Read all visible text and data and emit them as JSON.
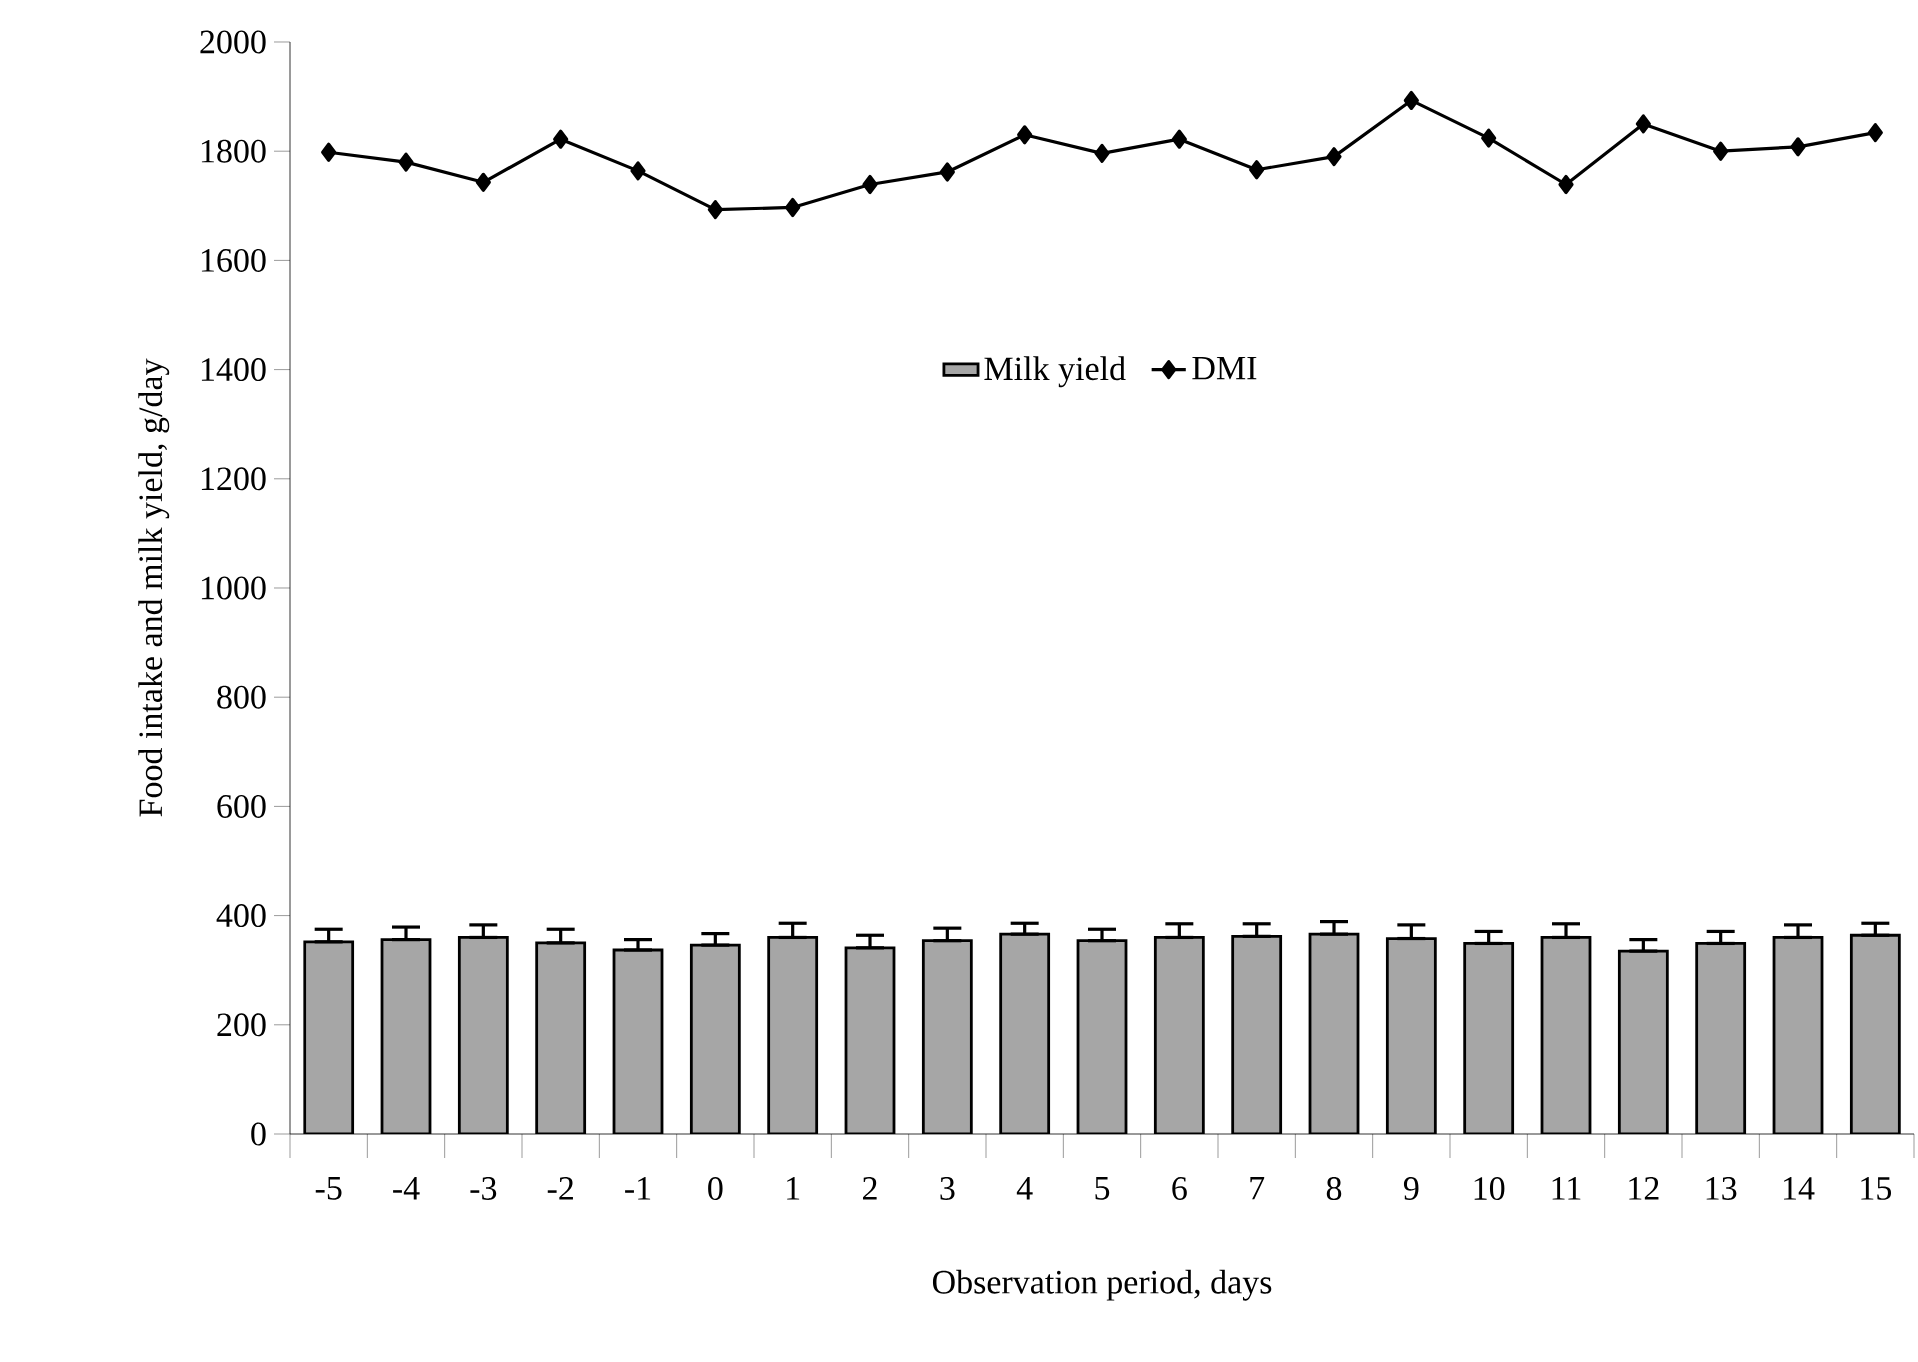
{
  "chart_data": {
    "type": "bar",
    "xlabel": "Observation period, days",
    "ylabel": "Food intake and milk yield, g/day",
    "categories": [
      "-5",
      "-4",
      "-3",
      "-2",
      "-1",
      "0",
      "1",
      "2",
      "3",
      "4",
      "5",
      "6",
      "7",
      "8",
      "9",
      "10",
      "11",
      "12",
      "13",
      "14",
      "15"
    ],
    "series": [
      {
        "name": "Milk yield",
        "color": "#a6a6a6",
        "values": [
          352,
          356,
          360,
          350,
          337,
          346,
          360,
          341,
          354,
          366,
          354,
          360,
          362,
          366,
          358,
          349,
          360,
          335,
          349,
          360,
          364
        ],
        "errors": [
          [
            352,
            375
          ],
          [
            356,
            379
          ],
          [
            360,
            383
          ],
          [
            350,
            375
          ],
          [
            337,
            356
          ],
          [
            346,
            367
          ],
          [
            360,
            386
          ],
          [
            341,
            364
          ],
          [
            354,
            377
          ],
          [
            366,
            386
          ],
          [
            354,
            375
          ],
          [
            360,
            385
          ],
          [
            362,
            385
          ],
          [
            366,
            389
          ],
          [
            358,
            383
          ],
          [
            349,
            371
          ],
          [
            360,
            385
          ],
          [
            335,
            356
          ],
          [
            349,
            371
          ],
          [
            360,
            383
          ],
          [
            364,
            386
          ]
        ]
      },
      {
        "name": "DMI",
        "type": "line",
        "color": "#000000",
        "marker": "diamond",
        "values": [
          1798,
          1780,
          1743,
          1822,
          1764,
          1693,
          1697,
          1739,
          1762,
          1830,
          1796,
          1822,
          1766,
          1790,
          1893,
          1824,
          1739,
          1850,
          1800,
          1808,
          1834
        ]
      }
    ],
    "ylim": [
      0,
      2000
    ],
    "yticks": [
      0,
      200,
      400,
      600,
      800,
      1000,
      1200,
      1400,
      1600,
      1800,
      2000
    ],
    "legend": "center",
    "grid": false
  }
}
